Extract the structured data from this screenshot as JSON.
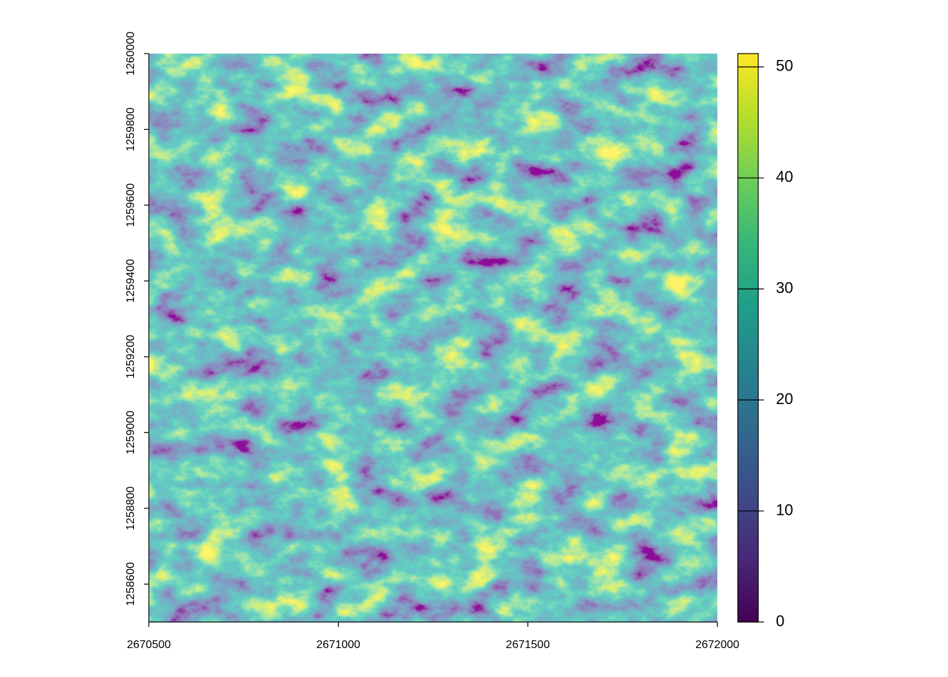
{
  "chart_data": {
    "type": "raster",
    "xlim": [
      2670500,
      2672000
    ],
    "xticks": [
      2670500,
      2671000,
      2671500,
      2672000
    ],
    "ylim": [
      1258500,
      1260000
    ],
    "yticks": [
      1258600,
      1258800,
      1259000,
      1259200,
      1259400,
      1259600,
      1259800,
      1260000
    ],
    "zlim": [
      0,
      51.2
    ],
    "zticks": [
      0,
      10,
      20,
      30,
      40,
      50
    ],
    "colormap": [
      "#440154",
      "#482878",
      "#3e4a89",
      "#31688e",
      "#26828e",
      "#1f9e89",
      "#35b779",
      "#6ece58",
      "#b5de2b",
      "#fde725"
    ]
  }
}
